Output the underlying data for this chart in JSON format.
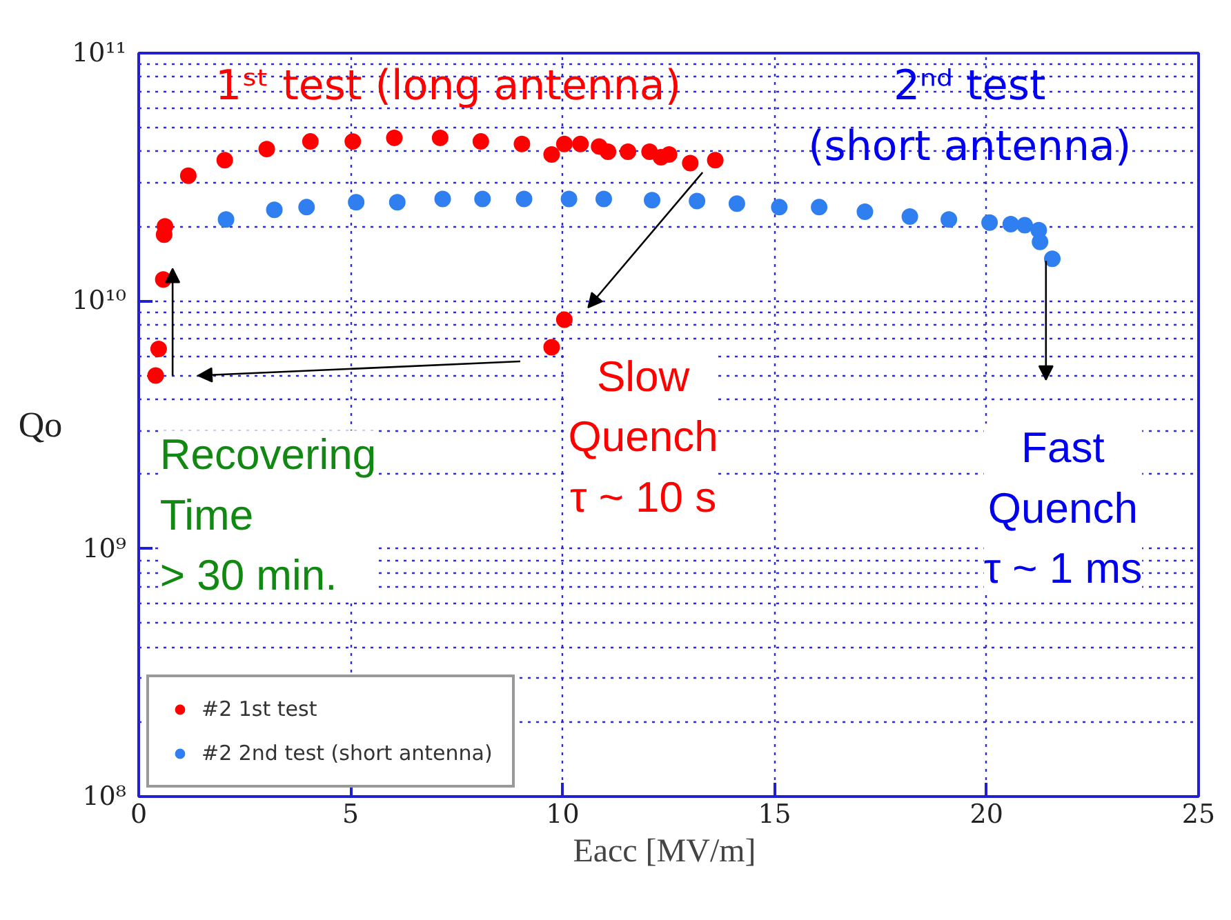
{
  "chart_data": {
    "type": "scatter",
    "xlabel": "Eacc  [MV/m]",
    "ylabel": "Qo",
    "xlim": [
      0,
      25
    ],
    "xticks": [
      0,
      5,
      10,
      15,
      20,
      25
    ],
    "ylim": [
      100000000,
      100000000000
    ],
    "log": "y",
    "yticks": [
      {
        "value": 100000000,
        "label": "10⁸"
      },
      {
        "value": 1000000000,
        "label": "10⁹"
      },
      {
        "value": 10000000000,
        "label": "10¹⁰"
      },
      {
        "value": 100000000000,
        "label": "10¹¹"
      }
    ],
    "grid": true,
    "legend": "bottom left",
    "marker": "circle",
    "series": [
      {
        "name": "#2 1st test",
        "color": "#ff0000",
        "x": [
          0.4,
          0.47,
          0.58,
          0.6,
          0.62,
          1.17,
          2.03,
          3.02,
          4.05,
          5.05,
          6.03,
          7.11,
          8.07,
          9.04,
          9.74,
          10.04,
          10.42,
          10.86,
          11.07,
          11.54,
          12.05,
          12.32,
          12.51,
          13.01,
          13.6,
          9.74,
          10.04
        ],
        "values": [
          5000000000.0,
          6400000000.0,
          12200000000.0,
          18500000000.0,
          20000000000.0,
          32000000000.0,
          37000000000.0,
          41000000000.0,
          44000000000.0,
          44000000000.0,
          45500000000.0,
          45500000000.0,
          44000000000.0,
          43000000000.0,
          39000000000.0,
          43000000000.0,
          43000000000.0,
          42000000000.0,
          40000000000.0,
          40000000000.0,
          40000000000.0,
          38000000000.0,
          39000000000.0,
          36000000000.0,
          37000000000.0,
          6500000000.0,
          8400000000.0
        ]
      },
      {
        "name": "#2 2nd test (short antenna)",
        "color": "#2f7ff0",
        "x": [
          2.06,
          3.2,
          3.96,
          5.13,
          6.1,
          7.17,
          8.11,
          9.09,
          10.15,
          10.97,
          12.11,
          13.17,
          14.11,
          15.11,
          16.05,
          17.13,
          18.19,
          19.11,
          20.07,
          20.57,
          20.9,
          21.23,
          21.26,
          21.55
        ],
        "values": [
          21300000000.0,
          23300000000.0,
          23900000000.0,
          25000000000.0,
          25000000000.0,
          25800000000.0,
          25800000000.0,
          25800000000.0,
          25800000000.0,
          25800000000.0,
          25500000000.0,
          25300000000.0,
          24700000000.0,
          23900000000.0,
          23900000000.0,
          22900000000.0,
          21900000000.0,
          21300000000.0,
          20700000000.0,
          20400000000.0,
          20200000000.0,
          19300000000.0,
          17300000000.0,
          14800000000.0
        ]
      }
    ],
    "annotations": [
      "1ˢᵗ test (long antenna)",
      "2ⁿᵈ test\n(short antenna)",
      "Recovering\nTime\n> 30 min.",
      "Slow\nQuench\nτ ~ 10 s",
      "Fast\nQuench\nτ ~ 1 ms"
    ]
  }
}
